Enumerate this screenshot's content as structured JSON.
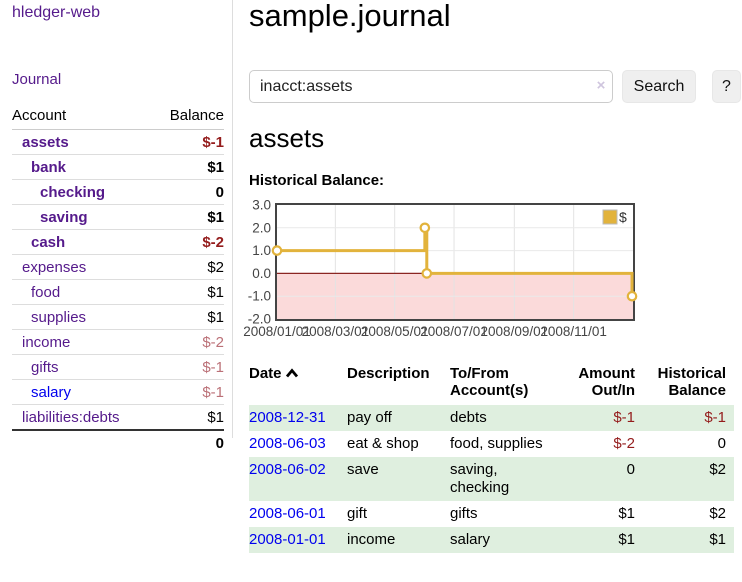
{
  "app": {
    "title": "hledger-web"
  },
  "sidebar": {
    "journal_label": "Journal",
    "header": {
      "account": "Account",
      "balance": "Balance"
    },
    "accounts": [
      {
        "name": "assets",
        "depth": 1,
        "bold": true,
        "balance": "$-1",
        "balance_class": "neg"
      },
      {
        "name": "bank",
        "depth": 2,
        "bold": true,
        "balance": "$1",
        "balance_class": "pos"
      },
      {
        "name": "checking",
        "depth": 3,
        "bold": true,
        "balance": "0",
        "balance_class": "pos"
      },
      {
        "name": "saving",
        "depth": 3,
        "bold": true,
        "balance": "$1",
        "balance_class": "pos"
      },
      {
        "name": "cash",
        "depth": 2,
        "bold": true,
        "balance": "$-2",
        "balance_class": "neg"
      },
      {
        "name": "expenses",
        "depth": 1,
        "bold": false,
        "balance": "$2",
        "balance_class": "pos"
      },
      {
        "name": "food",
        "depth": 2,
        "bold": false,
        "balance": "$1",
        "balance_class": "pos"
      },
      {
        "name": "supplies",
        "depth": 2,
        "bold": false,
        "balance": "$1",
        "balance_class": "pos"
      },
      {
        "name": "income",
        "depth": 1,
        "bold": false,
        "balance": "$-2",
        "balance_class": "neg-muted"
      },
      {
        "name": "gifts",
        "depth": 2,
        "bold": false,
        "balance": "$-1",
        "balance_class": "neg-muted"
      },
      {
        "name": "salary",
        "depth": 2,
        "bold": false,
        "balance": "$-1",
        "balance_class": "neg-muted",
        "link_color": "#0000ee"
      },
      {
        "name": "liabilities:debts",
        "depth": 1,
        "bold": false,
        "balance": "$1",
        "balance_class": "pos"
      }
    ],
    "total": "0"
  },
  "main": {
    "title": "sample.journal",
    "search": {
      "value": "inacct:assets",
      "clear_icon": "×",
      "button_label": "Search",
      "help_label": "?"
    },
    "account_heading": "assets",
    "chart_label": "Historical Balance:"
  },
  "chart_data": {
    "type": "line",
    "step": true,
    "title": "Historical Balance:",
    "series": [
      {
        "name": "$",
        "points": [
          {
            "date": "2008-01-01",
            "value": 1.0
          },
          {
            "date": "2008-06-01",
            "value": 2.0
          },
          {
            "date": "2008-06-03",
            "value": 0.0
          },
          {
            "date": "2008-12-31",
            "value": -1.0
          }
        ]
      }
    ],
    "xlim": [
      "2008-01-01",
      "2009-01-01"
    ],
    "ylim": [
      -2.0,
      3.0
    ],
    "x_ticks": [
      "2008/01/01",
      "2008/03/01",
      "2008/05/01",
      "2008/07/01",
      "2008/09/01",
      "2008/11/01"
    ],
    "y_ticks": [
      "3.0",
      "2.0",
      "1.0",
      "0.0",
      "-1.0",
      "-2.0"
    ],
    "grid": true,
    "legend_position": "top-right",
    "legend_label": "$",
    "colors": {
      "line": "#e2b33c",
      "marker_fill": "#ffffff",
      "negative_region": "#fbdada",
      "zero_line": "#8b2622",
      "border": "#444444",
      "gridline": "#e3e3e3"
    }
  },
  "register": {
    "headers": {
      "date": "Date",
      "description": "Description",
      "accounts": "To/From Account(s)",
      "amount": "Amount Out/In",
      "balance": "Historical Balance"
    },
    "rows": [
      {
        "date": "2008-12-31",
        "description": "pay off",
        "accounts": "debts",
        "amount": "$-1",
        "amount_class": "neg",
        "balance": "$-1",
        "balance_class": "neg"
      },
      {
        "date": "2008-06-03",
        "description": "eat & shop",
        "accounts": "food, supplies",
        "amount": "$-2",
        "amount_class": "neg",
        "balance": "0",
        "balance_class": "pos"
      },
      {
        "date": "2008-06-02",
        "description": "save",
        "accounts": "saving, checking",
        "amount": "0",
        "amount_class": "pos",
        "balance": "$2",
        "balance_class": "pos"
      },
      {
        "date": "2008-06-01",
        "description": "gift",
        "accounts": "gifts",
        "amount": "$1",
        "amount_class": "pos",
        "balance": "$2",
        "balance_class": "pos"
      },
      {
        "date": "2008-01-01",
        "description": "income",
        "accounts": "salary",
        "amount": "$1",
        "amount_class": "pos",
        "balance": "$1",
        "balance_class": "pos"
      }
    ]
  }
}
